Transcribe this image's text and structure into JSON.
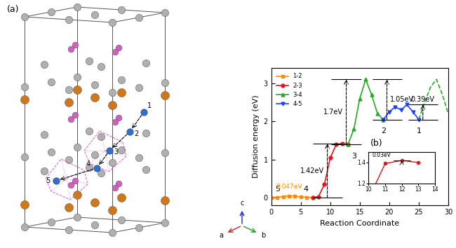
{
  "diagram": {
    "label": "(a)",
    "sites": [
      "1",
      "2",
      "3",
      "4",
      "5"
    ],
    "axis_labels": [
      "a",
      "b",
      "c"
    ]
  },
  "chart_data": {
    "type": "line",
    "label": "(b)",
    "x_label": "Reaction Coordinate",
    "y_label": "Diffusion energy (eV)",
    "xlim": [
      0,
      30
    ],
    "ylim": [
      -0.2,
      3.4
    ],
    "xticks": [
      0,
      5,
      10,
      15,
      20,
      25,
      30
    ],
    "yticks": [
      0,
      1,
      2,
      3
    ],
    "grid": false,
    "legend": "upper left",
    "series": [
      {
        "name": "1-2",
        "color": "#ff8c00",
        "marker": "square",
        "line_style": "solid",
        "x": [
          0,
          1,
          2,
          3,
          4,
          5,
          6,
          7
        ],
        "values": [
          0,
          0.01,
          0.03,
          0.047,
          0.04,
          0.02,
          0.01,
          0
        ]
      },
      {
        "name": "2-3",
        "color": "#e8141c",
        "marker": "circle",
        "line_style": "solid",
        "x": [
          7,
          8,
          9,
          10,
          11,
          12,
          13
        ],
        "values": [
          0,
          0.03,
          0.35,
          1.05,
          1.39,
          1.42,
          1.4
        ]
      },
      {
        "name": "3-4",
        "color": "#22aa22",
        "marker": "triangle_up",
        "line_style": "solid",
        "x": [
          13,
          14,
          15,
          16,
          17,
          18,
          19
        ],
        "values": [
          1.4,
          1.8,
          2.6,
          3.1,
          2.7,
          2.2,
          2.05
        ]
      },
      {
        "name": "4-5",
        "color": "#1f3fff",
        "marker": "triangle_down",
        "line_style": "solid",
        "x": [
          19,
          20,
          21,
          22,
          23,
          24,
          25
        ],
        "values": [
          2.05,
          2.25,
          2.38,
          2.3,
          2.44,
          2.25,
          2.05
        ]
      },
      {
        "name": null,
        "color": "#22aa22",
        "marker": "none",
        "line_style": "dashed",
        "x": [
          25,
          26,
          27,
          28,
          29,
          30
        ],
        "values": [
          2.05,
          2.5,
          2.9,
          3.1,
          2.7,
          2.2
        ]
      }
    ],
    "site_labels": [
      "5",
      "4",
      "3",
      "2",
      "1"
    ],
    "annotations": [
      {
        "text": "0.047eV",
        "x": 3,
        "y": 0.047
      }
    ],
    "barriers": [
      {
        "label": "1.42eV",
        "x": 9.5,
        "low": 0,
        "high": 1.42
      },
      {
        "label": "1.7eV",
        "x": 12.7,
        "low": 1.4,
        "high": 3.1
      },
      {
        "label": "1.05eV",
        "x": 19.6,
        "low": 2.05,
        "high": 3.1
      },
      {
        "label": "0.39eV",
        "x": 25.7,
        "low": 2.05,
        "high": 2.44
      }
    ],
    "inset": {
      "series": "2-3",
      "xlim": [
        10,
        14
      ],
      "ylim": [
        1.2,
        1.5
      ],
      "xticks": [
        10,
        11,
        12,
        13,
        14
      ],
      "yticks": [
        1.2,
        1.4
      ],
      "barrier": {
        "label": "0.03eV",
        "x": 12,
        "low": 1.39,
        "high": 1.42
      }
    }
  }
}
